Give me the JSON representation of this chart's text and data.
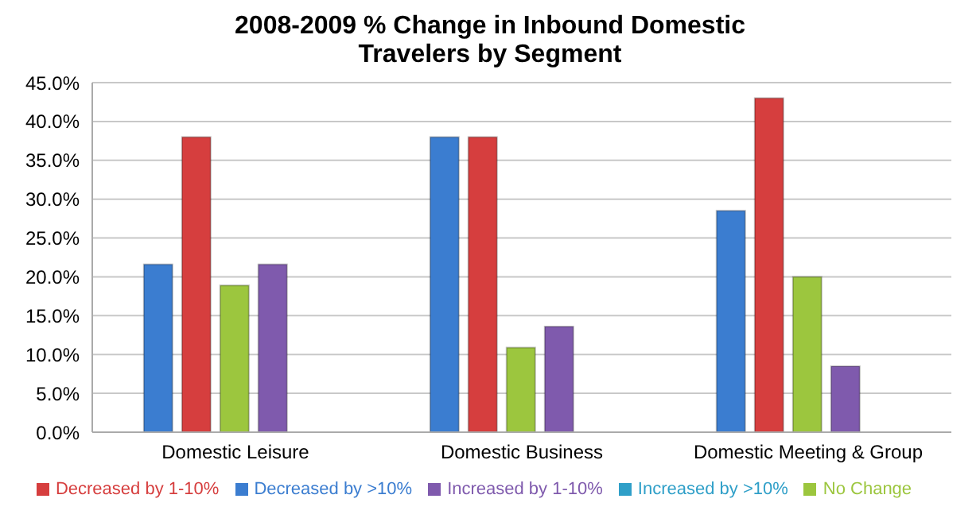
{
  "chart_data": {
    "type": "bar",
    "title": "2008-2009 % Change in Inbound Domestic Travelers by Segment",
    "categories": [
      "Domestic Leisure",
      "Domestic Business",
      "Domestic Meeting & Group"
    ],
    "series": [
      {
        "name": "Decreased by >10%",
        "color": "#3b7dd0",
        "values": [
          21.6,
          38.0,
          28.5
        ]
      },
      {
        "name": "Decreased by 1-10%",
        "color": "#d63e3e",
        "values": [
          38.0,
          38.0,
          43.0
        ]
      },
      {
        "name": "No Change",
        "color": "#9cc63e",
        "values": [
          18.9,
          10.9,
          20.0
        ]
      },
      {
        "name": "Increased by 1-10%",
        "color": "#7f5aad",
        "values": [
          21.6,
          13.6,
          8.5
        ]
      },
      {
        "name": "Increased by >10%",
        "color": "#2f9fc8",
        "values": [
          0,
          0,
          0
        ]
      }
    ],
    "ylim": [
      0,
      45
    ],
    "yticks": [
      {
        "value": 0,
        "label": "0.0%"
      },
      {
        "value": 5,
        "label": "5.0%"
      },
      {
        "value": 10,
        "label": "10.0%"
      },
      {
        "value": 15,
        "label": "15.0%"
      },
      {
        "value": 20,
        "label": "20.0%"
      },
      {
        "value": 25,
        "label": "25.0%"
      },
      {
        "value": 30,
        "label": "30.0%"
      },
      {
        "value": 35,
        "label": "35.0%"
      },
      {
        "value": 40,
        "label": "40.0%"
      },
      {
        "value": 45,
        "label": "45.0%"
      }
    ],
    "grid": "y",
    "legend": "bottom"
  }
}
